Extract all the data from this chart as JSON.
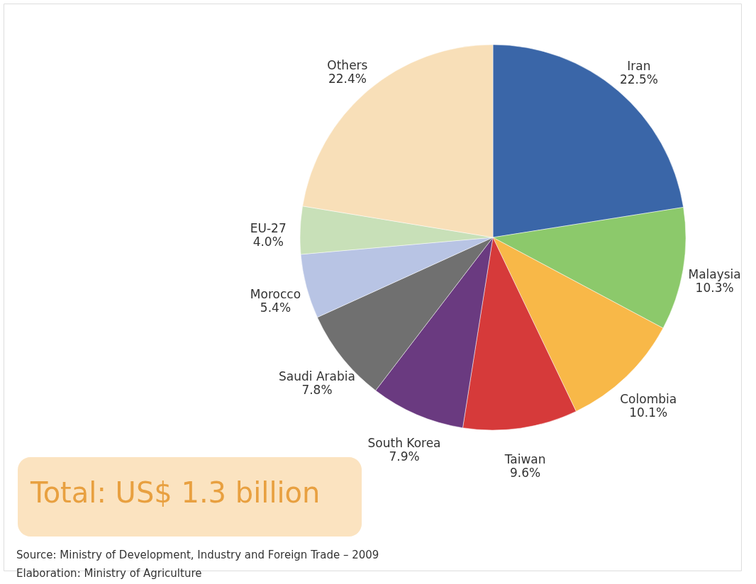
{
  "chart_data": {
    "type": "pie",
    "categories": [
      "Iran",
      "Malaysia",
      "Colombia",
      "Taiwan",
      "South Korea",
      "Saudi Arabia",
      "Morocco",
      "EU-27",
      "Others"
    ],
    "values": [
      22.5,
      10.3,
      10.1,
      9.6,
      7.9,
      7.8,
      5.4,
      4.0,
      22.4
    ],
    "value_labels": [
      "22.5%",
      "10.3%",
      "10.1%",
      "9.6%",
      "7.9%",
      "7.8%",
      "5.4%",
      "4.0%",
      "22.4%"
    ],
    "colors": [
      "#3a66a8",
      "#8cc96b",
      "#f8b848",
      "#d63a3a",
      "#6a3a80",
      "#707070",
      "#b8c4e4",
      "#c8e0b8",
      "#f8dfb8"
    ],
    "legend": false,
    "annotations": [
      "Total: US$ 1.3 billion",
      "Source: Ministry of Development, Industry and Foreign Trade – 2009",
      "Elaboration: Ministry of Agriculture"
    ]
  }
}
